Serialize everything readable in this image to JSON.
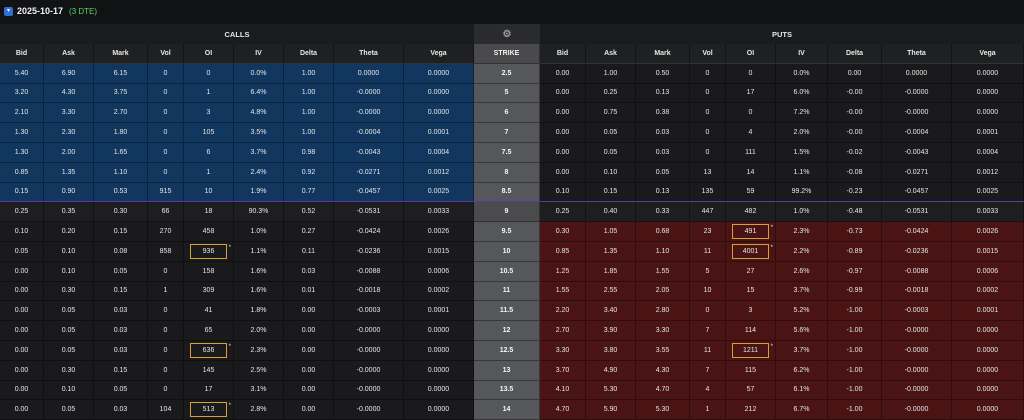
{
  "expiration": {
    "date": "2025-10-17",
    "dte": "(3 DTE)",
    "badge_icon": "chevron-down-icon"
  },
  "headers": {
    "calls": "CALLS",
    "puts": "PUTS",
    "gear_icon": "gear-icon"
  },
  "columns": {
    "calls": [
      "Bid",
      "Ask",
      "Mark",
      "Vol",
      "OI",
      "IV",
      "Delta",
      "Theta",
      "Vega"
    ],
    "strike": "STRIKE",
    "puts": [
      "Bid",
      "Ask",
      "Mark",
      "Vol",
      "OI",
      "IV",
      "Delta",
      "Theta",
      "Vega"
    ]
  },
  "rows": [
    {
      "strike": "2.5",
      "zone": "itm-call",
      "calls": [
        "5.40",
        "6.90",
        "6.15",
        "0",
        "0",
        "0.0%",
        "1.00",
        "0.0000",
        "0.0000"
      ],
      "puts": [
        "0.00",
        "1.00",
        "0.50",
        "0",
        "0",
        "0.0%",
        "0.00",
        "0.0000",
        "0.0000"
      ]
    },
    {
      "strike": "5",
      "zone": "itm-call",
      "calls": [
        "3.20",
        "4.30",
        "3.75",
        "0",
        "1",
        "6.4%",
        "1.00",
        "-0.0000",
        "0.0000"
      ],
      "puts": [
        "0.00",
        "0.25",
        "0.13",
        "0",
        "17",
        "6.0%",
        "-0.00",
        "-0.0000",
        "0.0000"
      ]
    },
    {
      "strike": "6",
      "zone": "itm-call",
      "calls": [
        "2.10",
        "3.30",
        "2.70",
        "0",
        "3",
        "4.8%",
        "1.00",
        "-0.0000",
        "0.0000"
      ],
      "puts": [
        "0.00",
        "0.75",
        "0.38",
        "0",
        "0",
        "7.2%",
        "-0.00",
        "-0.0000",
        "0.0000"
      ]
    },
    {
      "strike": "7",
      "zone": "itm-call",
      "calls": [
        "1.30",
        "2.30",
        "1.80",
        "0",
        "105",
        "3.5%",
        "1.00",
        "-0.0004",
        "0.0001"
      ],
      "puts": [
        "0.00",
        "0.05",
        "0.03",
        "0",
        "4",
        "2.0%",
        "-0.00",
        "-0.0004",
        "0.0001"
      ]
    },
    {
      "strike": "7.5",
      "zone": "itm-call",
      "calls": [
        "1.30",
        "2.00",
        "1.65",
        "0",
        "6",
        "3.7%",
        "0.98",
        "-0.0043",
        "0.0004"
      ],
      "puts": [
        "0.00",
        "0.05",
        "0.03",
        "0",
        "111",
        "1.5%",
        "-0.02",
        "-0.0043",
        "0.0004"
      ]
    },
    {
      "strike": "8",
      "zone": "itm-call",
      "calls": [
        "0.85",
        "1.35",
        "1.10",
        "0",
        "1",
        "2.4%",
        "0.92",
        "-0.0271",
        "0.0012"
      ],
      "puts": [
        "0.00",
        "0.10",
        "0.05",
        "13",
        "14",
        "1.1%",
        "-0.08",
        "-0.0271",
        "0.0012"
      ]
    },
    {
      "strike": "8.5",
      "zone": "itm-call",
      "calls": [
        "0.15",
        "0.90",
        "0.53",
        "915",
        "10",
        "1.9%",
        "0.77",
        "-0.0457",
        "0.0025"
      ],
      "puts": [
        "0.10",
        "0.15",
        "0.13",
        "135",
        "59",
        "99.2%",
        "-0.23",
        "-0.0457",
        "0.0025"
      ]
    },
    {
      "strike": "9",
      "zone": "atm",
      "calls": [
        "0.25",
        "0.35",
        "0.30",
        "66",
        "18",
        "90.3%",
        "0.52",
        "-0.0531",
        "0.0033"
      ],
      "puts": [
        "0.25",
        "0.40",
        "0.33",
        "447",
        "482",
        "1.0%",
        "-0.48",
        "-0.0531",
        "0.0033"
      ]
    },
    {
      "strike": "9.5",
      "zone": "itm-put",
      "calls": [
        "0.10",
        "0.20",
        "0.15",
        "270",
        "458",
        "1.0%",
        "0.27",
        "-0.0424",
        "0.0026"
      ],
      "puts": [
        "0.30",
        "1.05",
        "0.68",
        "23",
        "491",
        "2.3%",
        "-0.73",
        "-0.0424",
        "0.0026"
      ],
      "put_oi_hl": true
    },
    {
      "strike": "10",
      "zone": "itm-put",
      "calls": [
        "0.05",
        "0.10",
        "0.08",
        "858",
        "936",
        "1.1%",
        "0.11",
        "-0.0236",
        "0.0015"
      ],
      "puts": [
        "0.85",
        "1.35",
        "1.10",
        "11",
        "4001",
        "2.2%",
        "-0.89",
        "-0.0236",
        "0.0015"
      ],
      "call_oi_hl": true,
      "put_oi_hl": true
    },
    {
      "strike": "10.5",
      "zone": "itm-put",
      "calls": [
        "0.00",
        "0.10",
        "0.05",
        "0",
        "158",
        "1.6%",
        "0.03",
        "-0.0088",
        "0.0006"
      ],
      "puts": [
        "1.25",
        "1.85",
        "1.55",
        "5",
        "27",
        "2.6%",
        "-0.97",
        "-0.0088",
        "0.0006"
      ]
    },
    {
      "strike": "11",
      "zone": "itm-put",
      "calls": [
        "0.00",
        "0.30",
        "0.15",
        "1",
        "309",
        "1.6%",
        "0.01",
        "-0.0018",
        "0.0002"
      ],
      "puts": [
        "1.55",
        "2.55",
        "2.05",
        "10",
        "15",
        "3.7%",
        "-0.99",
        "-0.0018",
        "0.0002"
      ]
    },
    {
      "strike": "11.5",
      "zone": "itm-put",
      "calls": [
        "0.00",
        "0.05",
        "0.03",
        "0",
        "41",
        "1.8%",
        "0.00",
        "-0.0003",
        "0.0001"
      ],
      "puts": [
        "2.20",
        "3.40",
        "2.80",
        "0",
        "3",
        "5.2%",
        "-1.00",
        "-0.0003",
        "0.0001"
      ]
    },
    {
      "strike": "12",
      "zone": "itm-put",
      "calls": [
        "0.00",
        "0.05",
        "0.03",
        "0",
        "65",
        "2.0%",
        "0.00",
        "-0.0000",
        "0.0000"
      ],
      "puts": [
        "2.70",
        "3.90",
        "3.30",
        "7",
        "114",
        "5.6%",
        "-1.00",
        "-0.0000",
        "0.0000"
      ]
    },
    {
      "strike": "12.5",
      "zone": "itm-put",
      "calls": [
        "0.00",
        "0.05",
        "0.03",
        "0",
        "636",
        "2.3%",
        "0.00",
        "-0.0000",
        "0.0000"
      ],
      "puts": [
        "3.30",
        "3.80",
        "3.55",
        "11",
        "1211",
        "3.7%",
        "-1.00",
        "-0.0000",
        "0.0000"
      ],
      "call_oi_hl": true,
      "put_oi_hl": true
    },
    {
      "strike": "13",
      "zone": "itm-put",
      "calls": [
        "0.00",
        "0.30",
        "0.15",
        "0",
        "145",
        "2.5%",
        "0.00",
        "-0.0000",
        "0.0000"
      ],
      "puts": [
        "3.70",
        "4.90",
        "4.30",
        "7",
        "115",
        "6.2%",
        "-1.00",
        "-0.0000",
        "0.0000"
      ]
    },
    {
      "strike": "13.5",
      "zone": "itm-put",
      "calls": [
        "0.00",
        "0.10",
        "0.05",
        "0",
        "17",
        "3.1%",
        "0.00",
        "-0.0000",
        "0.0000"
      ],
      "puts": [
        "4.10",
        "5.30",
        "4.70",
        "4",
        "57",
        "6.1%",
        "-1.00",
        "-0.0000",
        "0.0000"
      ]
    },
    {
      "strike": "14",
      "zone": "itm-put",
      "calls": [
        "0.00",
        "0.05",
        "0.03",
        "104",
        "513",
        "2.8%",
        "0.00",
        "-0.0000",
        "0.0000"
      ],
      "puts": [
        "4.70",
        "5.90",
        "5.30",
        "1",
        "212",
        "6.7%",
        "-1.00",
        "-0.0000",
        "0.0000"
      ],
      "call_oi_hl": true
    }
  ]
}
